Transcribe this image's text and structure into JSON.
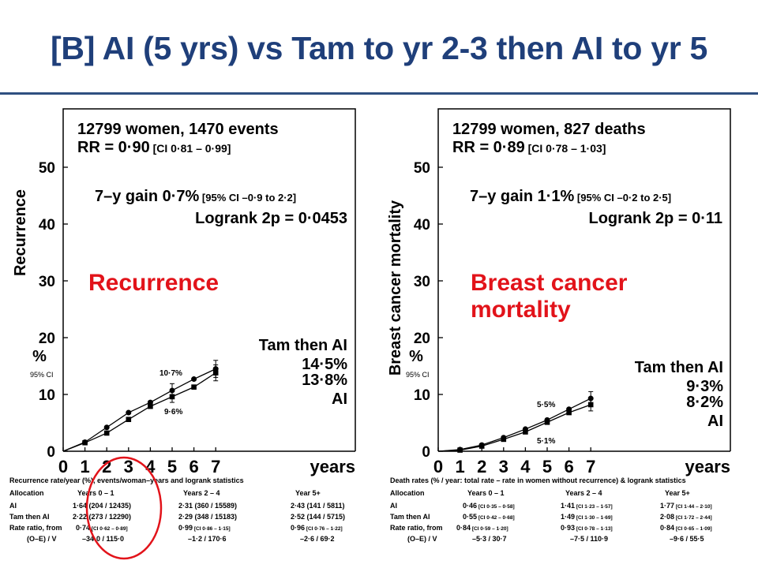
{
  "slide": {
    "title": "[B] AI (5 yrs) vs Tam to yr 2-3 then AI to yr 5"
  },
  "colors": {
    "title": "#1f3f7a",
    "highlight": "#e2131a",
    "circle": "#e2131a"
  },
  "chart_data": [
    {
      "type": "line",
      "ylabel": "Recurrence",
      "ylabel_pct": "%",
      "ci_label": "95% CI",
      "xlabel": "years",
      "xlim": [
        0,
        7
      ],
      "ylim": [
        0,
        60
      ],
      "x_ticks": [
        0,
        1,
        2,
        3,
        4,
        5,
        6,
        7
      ],
      "x_tick_labels": [
        "0",
        "1",
        "2",
        "3",
        "4",
        "5",
        "6",
        "7"
      ],
      "y_ticks": [
        0,
        10,
        20,
        30,
        40,
        50
      ],
      "y_tick_labels": [
        "0",
        "10",
        "20",
        "30",
        "40",
        "50"
      ],
      "header": {
        "line1": "12799 women, 1470 events",
        "rr_main": "RR = 0·90",
        "rr_ci": "[CI 0·81 – 0·99]",
        "gain_main": "7–y gain 0·7%",
        "gain_ci": "[95% CI –0·9 to 2·2]",
        "logrank": "Logrank 2p = 0·0453"
      },
      "highlight_label": [
        "Recurrence"
      ],
      "legend": {
        "top_name": "Tam then AI",
        "top_value": "14·5%",
        "bottom_value": "13·8%",
        "bottom_name": "AI"
      },
      "annotations": {
        "upper": "10·7%",
        "lower": "9·6%"
      },
      "series": [
        {
          "name": "Tam then AI",
          "marker": "circle",
          "x": [
            1,
            2,
            3,
            4,
            5,
            6,
            7
          ],
          "y": [
            1.6,
            4.2,
            6.8,
            8.6,
            10.7,
            12.7,
            14.5
          ],
          "ci": [
            null,
            null,
            null,
            null,
            1.2,
            null,
            1.5
          ]
        },
        {
          "name": "AI",
          "marker": "square",
          "x": [
            1,
            2,
            3,
            4,
            5,
            6,
            7
          ],
          "y": [
            1.5,
            3.2,
            5.6,
            7.9,
            9.6,
            11.3,
            13.8
          ],
          "ci": [
            null,
            null,
            null,
            null,
            1.0,
            null,
            1.4
          ]
        }
      ],
      "table": {
        "title": "Recurrence rate/year (%), events/woman–years and logrank statistics",
        "header": [
          "Allocation",
          "Years 0 – 1",
          "Years 2 – 4",
          "Year 5+"
        ],
        "rows": [
          [
            "AI",
            "1·64 (204 / 12435)",
            "2·31 (360 / 15589)",
            "2·43 (141 / 5811)"
          ],
          [
            "Tam then AI",
            "2·22 (273 / 12290)",
            "2·29 (348 / 15183)",
            "2·52 (144 / 5715)"
          ]
        ],
        "ratio_label": "Rate ratio, from",
        "ratios": [
          {
            "main": "0·74",
            "ci": "[CI 0·62 – 0·89]"
          },
          {
            "main": "0·99",
            "ci": "[CI 0·86 – 1·15]"
          },
          {
            "main": "0·96",
            "ci": "[CI 0·76 – 1·22]"
          }
        ],
        "oe_label": "(O–E) / V",
        "oe": [
          "–34·0 / 115·0",
          "–1·2 / 170·6",
          "–2·6 / 69·2"
        ]
      }
    },
    {
      "type": "line",
      "ylabel": "Breast cancer mortality",
      "ylabel_pct": "%",
      "ci_label": "95% CI",
      "xlabel": "years",
      "xlim": [
        0,
        7
      ],
      "ylim": [
        0,
        60
      ],
      "x_ticks": [
        0,
        1,
        2,
        3,
        4,
        5,
        6,
        7
      ],
      "x_tick_labels": [
        "0",
        "1",
        "2",
        "3",
        "4",
        "5",
        "6",
        "7"
      ],
      "y_ticks": [
        0,
        10,
        20,
        30,
        40,
        50
      ],
      "y_tick_labels": [
        "0",
        "10",
        "20",
        "30",
        "40",
        "50"
      ],
      "header": {
        "line1": "12799 women, 827 deaths",
        "rr_main": "RR = 0·89",
        "rr_ci": "[CI 0·78 – 1·03]",
        "gain_main": "7–y gain 1·1%",
        "gain_ci": "[95% CI –0·2 to 2·5]",
        "logrank": "Logrank 2p = 0·11"
      },
      "highlight_label": [
        "Breast cancer",
        "mortality"
      ],
      "legend": {
        "top_name": "Tam then AI",
        "top_value": "9·3%",
        "bottom_value": "8·2%",
        "bottom_name": "AI"
      },
      "annotations": {
        "upper": "5·5%",
        "lower": "5·1%"
      },
      "series": [
        {
          "name": "Tam then AI",
          "marker": "circle",
          "x": [
            1,
            2,
            3,
            4,
            5,
            6,
            7
          ],
          "y": [
            0.3,
            1.1,
            2.4,
            3.9,
            5.5,
            7.4,
            9.3
          ],
          "ci": [
            null,
            null,
            null,
            null,
            null,
            null,
            1.2
          ]
        },
        {
          "name": "AI",
          "marker": "square",
          "x": [
            1,
            2,
            3,
            4,
            5,
            6,
            7
          ],
          "y": [
            0.2,
            0.9,
            2.1,
            3.4,
            5.1,
            6.8,
            8.2
          ],
          "ci": [
            null,
            null,
            null,
            null,
            null,
            null,
            1.1
          ]
        }
      ],
      "table": {
        "title": "Death rates (% / year: total rate – rate in women without recurrence) & logrank statistics",
        "header": [
          "Allocation",
          "Years 0 – 1",
          "Years 2 – 4",
          "Year 5+"
        ],
        "rows_split": [
          {
            "label": "AI",
            "cells": [
              {
                "main": "0·46",
                "ci": "[CI 0·35 – 0·58]"
              },
              {
                "main": "1·41",
                "ci": "[CI 1·23 – 1·57]"
              },
              {
                "main": "1·77",
                "ci": "[CI 1·44 – 2·10]"
              }
            ]
          },
          {
            "label": "Tam then AI",
            "cells": [
              {
                "main": "0·55",
                "ci": "[CI 0·42 – 0·68]"
              },
              {
                "main": "1·49",
                "ci": "[CI 1·30 – 1·69]"
              },
              {
                "main": "2·08",
                "ci": "[CI 1·72 – 2·44]"
              }
            ]
          }
        ],
        "ratio_label": "Rate ratio, from",
        "ratios": [
          {
            "main": "0·84",
            "ci": "[CI 0·59 – 1·20]"
          },
          {
            "main": "0·93",
            "ci": "[CI 0·78 – 1·13]"
          },
          {
            "main": "0·84",
            "ci": "[CI 0·65 – 1·09]"
          }
        ],
        "oe_label": "(O–E) / V",
        "oe": [
          "–5·3 / 30·7",
          "–7·5 / 110·9",
          "–9·6 / 55·5"
        ]
      }
    }
  ]
}
